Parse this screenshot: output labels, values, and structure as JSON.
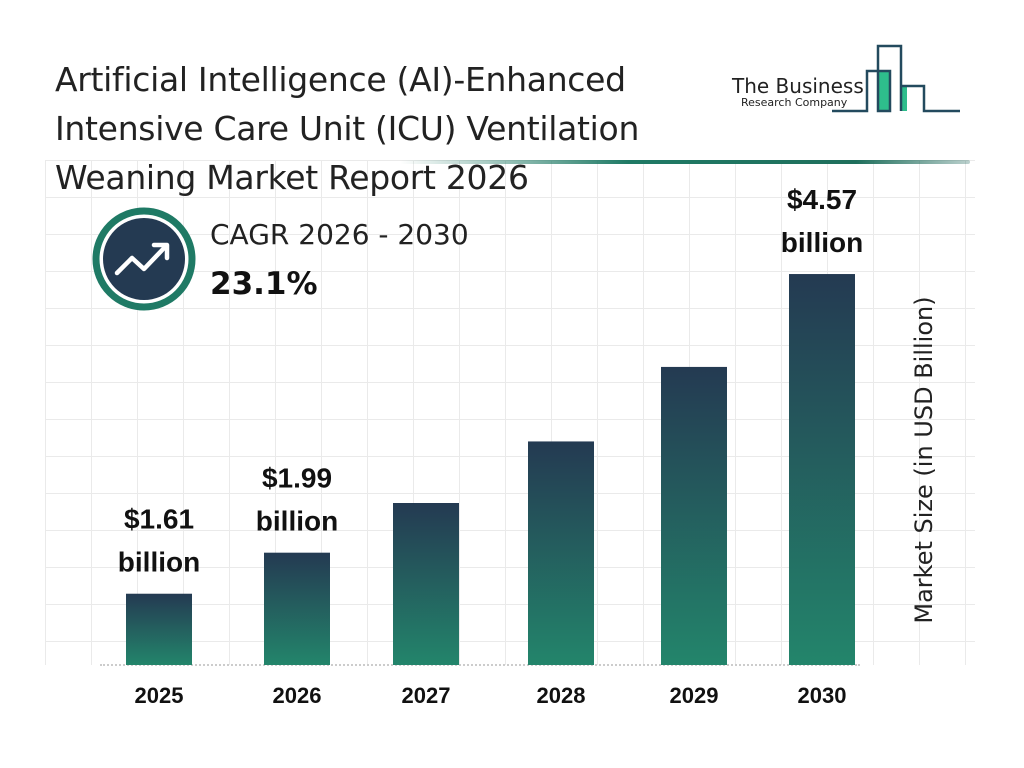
{
  "title_lines": [
    "Artificial Intelligence (AI)-Enhanced",
    "Intensive Care Unit (ICU) Ventilation",
    "Weaning Market Report 2026"
  ],
  "logo": {
    "line1": "The Business",
    "line2": "Research Company"
  },
  "cagr": {
    "label": "CAGR 2026 - 2030",
    "value": "23.1%",
    "icon": "trending-up-icon"
  },
  "colors": {
    "bar_top": "#243a52",
    "bar_bottom": "#23856b",
    "accent": "#1f7a65"
  },
  "chart_data": {
    "type": "bar",
    "title": "Artificial Intelligence (AI)-Enhanced Intensive Care Unit (ICU) Ventilation Weaning Market Report 2026",
    "ylabel": "Market Size (in USD Billion)",
    "xlabel": "",
    "categories": [
      "2025",
      "2026",
      "2027",
      "2028",
      "2029",
      "2030"
    ],
    "values": [
      1.61,
      1.99,
      2.45,
      3.02,
      3.71,
      4.57
    ],
    "data_labels": [
      [
        "$1.61",
        "billion"
      ],
      [
        "$1.99",
        "billion"
      ],
      null,
      null,
      null,
      [
        "$4.57",
        "billion"
      ]
    ],
    "grid": true,
    "legend": "none"
  }
}
